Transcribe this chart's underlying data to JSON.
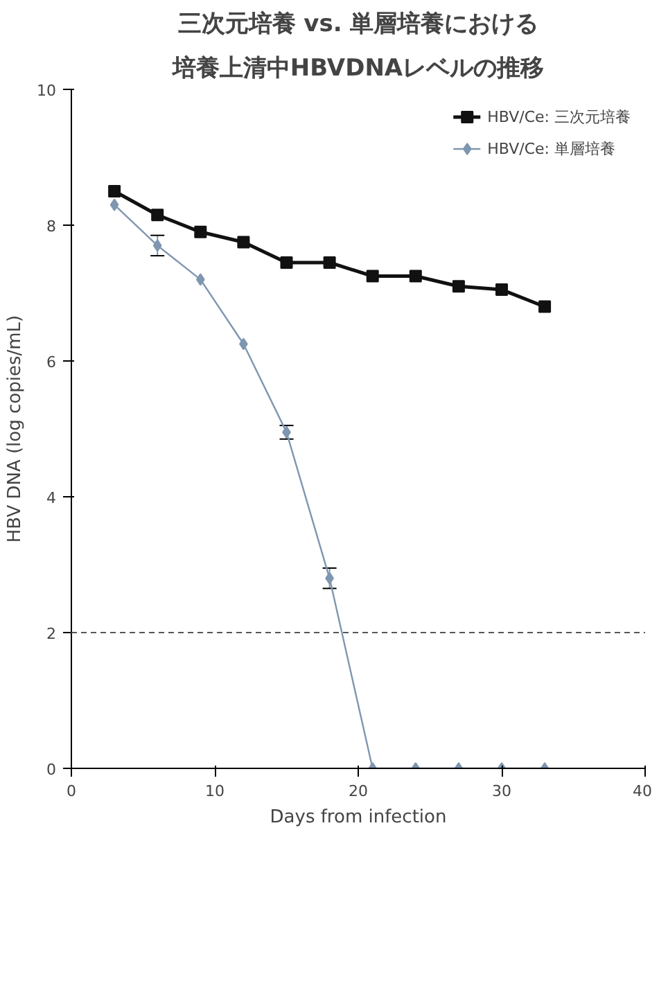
{
  "chart_data": {
    "type": "line",
    "title": "三次元培養 vs. 単層培養における",
    "subtitle": "培養上清中HBVDNAレベルの推移",
    "xlabel": "Days from infection",
    "ylabel": "HBV DNA (log copies/mL)",
    "xlim": [
      0,
      40
    ],
    "xticks": [
      0,
      10,
      20,
      30,
      40
    ],
    "ylim": [
      0,
      10
    ],
    "yticks": [
      0,
      2,
      4,
      6,
      8,
      10
    ],
    "grid": false,
    "legend": "top right",
    "series": [
      {
        "name": "HBV/Ce: 三次元培養",
        "color": "#111111",
        "marker": "square",
        "x": [
          3,
          6,
          9,
          12,
          15,
          18,
          21,
          24,
          27,
          30,
          33
        ],
        "values": [
          8.5,
          8.15,
          7.9,
          7.75,
          7.45,
          7.45,
          7.25,
          7.25,
          7.1,
          7.05,
          6.8
        ]
      },
      {
        "name": "HBV/Ce: 単層培養",
        "color": "#7f96b0",
        "marker": "diamond",
        "x": [
          3,
          6,
          9,
          12,
          15,
          18,
          21,
          24,
          27,
          30,
          33
        ],
        "values": [
          8.3,
          7.7,
          7.2,
          6.25,
          4.95,
          2.8,
          0,
          0,
          0,
          0,
          0
        ],
        "errors": [
          null,
          0.15,
          null,
          null,
          0.1,
          0.15,
          null,
          null,
          null,
          null,
          null
        ]
      }
    ],
    "ref_lines": [
      {
        "axis": "y",
        "value": 2,
        "color": "#555555",
        "line_style": "dashed"
      }
    ]
  }
}
